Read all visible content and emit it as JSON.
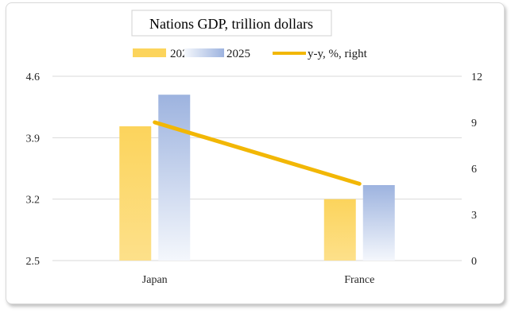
{
  "chart_data": {
    "type": "bar",
    "title": "Nations GDP, trillion dollars",
    "categories": [
      "Japan",
      "France"
    ],
    "series": [
      {
        "name": "2024",
        "type": "bar",
        "axis": "left",
        "color": "#fcd45c",
        "values": [
          4.03,
          3.2
        ]
      },
      {
        "name": "2025",
        "type": "bar",
        "axis": "left",
        "color": "#9db3df",
        "values": [
          4.39,
          3.36
        ]
      },
      {
        "name": "y-y, %, right",
        "type": "line",
        "axis": "right",
        "color": "#f2b705",
        "values": [
          9.0,
          5.0
        ]
      }
    ],
    "y_left": {
      "min": 2.5,
      "max": 4.6,
      "ticks": [
        "2.5",
        "3.2",
        "3.9",
        "4.6"
      ]
    },
    "y_right": {
      "min": 0,
      "max": 12,
      "ticks": [
        "0",
        "3",
        "6",
        "9",
        "12"
      ]
    },
    "grid": true,
    "legend_position": "top"
  }
}
